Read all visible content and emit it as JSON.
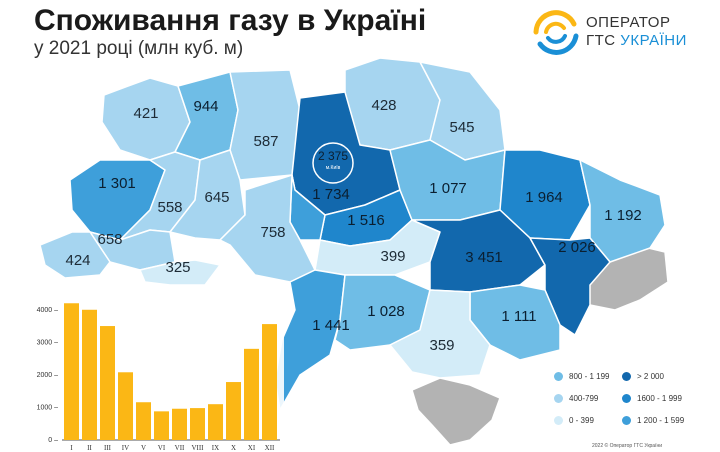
{
  "title": "Споживання газу в Україні",
  "subtitle": "у 2021 році (млн куб. м)",
  "logo": {
    "line1": "ОПЕРАТОР",
    "line2_prefix": "ГТС ",
    "line2_accent": "УКРАЇНИ"
  },
  "regions": [
    {
      "label": "421",
      "band": "400-799"
    },
    {
      "label": "944",
      "band": "800-1199"
    },
    {
      "label": "587",
      "band": "400-799"
    },
    {
      "label": "428",
      "band": "400-799"
    },
    {
      "label": "545",
      "band": "400-799"
    },
    {
      "label": "2 375",
      "band": ">2000",
      "note": "м.Київ"
    },
    {
      "label": "1 301",
      "band": "1200-1599"
    },
    {
      "label": "558",
      "band": "400-799"
    },
    {
      "label": "645",
      "band": "400-799"
    },
    {
      "label": "1 734",
      "band": "1600-1999"
    },
    {
      "label": "1 077",
      "band": "800-1199"
    },
    {
      "label": "1 964",
      "band": "1600-1999"
    },
    {
      "label": "1 192",
      "band": "800-1199"
    },
    {
      "label": "1 516",
      "band": "1200-1599"
    },
    {
      "label": "658",
      "band": "400-799"
    },
    {
      "label": "758",
      "band": "400-799"
    },
    {
      "label": "424",
      "band": "400-799"
    },
    {
      "label": "325",
      "band": "0-399"
    },
    {
      "label": "399",
      "band": "0-399"
    },
    {
      "label": "3 451",
      "band": ">2000"
    },
    {
      "label": "2 026",
      "band": ">2000"
    },
    {
      "label": "1 441",
      "band": "1200-1599"
    },
    {
      "label": "1 028",
      "band": "800-1199"
    },
    {
      "label": "1 111",
      "band": "800-1199"
    },
    {
      "label": "359",
      "band": "0-399"
    }
  ],
  "colors": {
    "0-399": "#d3ecf8",
    "400-799": "#a6d5f0",
    "800-1199": "#6fbde6",
    "1200-1599": "#3e9fda",
    "1600-1999": "#1f86cc",
    ">2000": "#1268ad",
    "no-data": "#b3b3b3",
    "bar": "#fbb715"
  },
  "legend": {
    "items": [
      {
        "label": "800 - 1 199",
        "band": "800-1199"
      },
      {
        "label": "> 2 000",
        "band": ">2000"
      },
      {
        "label": "400-799",
        "band": "400-799"
      },
      {
        "label": "1600 - 1 999",
        "band": "1600-1999"
      },
      {
        "label": "0 - 399",
        "band": "0-399"
      },
      {
        "label": "1 200 - 1 599",
        "band": "1200-1599"
      }
    ]
  },
  "chart_data": {
    "type": "bar",
    "categories": [
      "I",
      "II",
      "III",
      "IV",
      "V",
      "VI",
      "VII",
      "VIII",
      "IX",
      "X",
      "XI",
      "XII"
    ],
    "values": [
      4200,
      4000,
      3500,
      2080,
      1160,
      880,
      960,
      980,
      1100,
      1780,
      2800,
      3560
    ],
    "yticks": [
      "0",
      "1000",
      "2000",
      "3000",
      "4000"
    ],
    "ylim": [
      0,
      4300
    ],
    "grid": false
  },
  "copyright": "2022 © Оператор ГТС України"
}
